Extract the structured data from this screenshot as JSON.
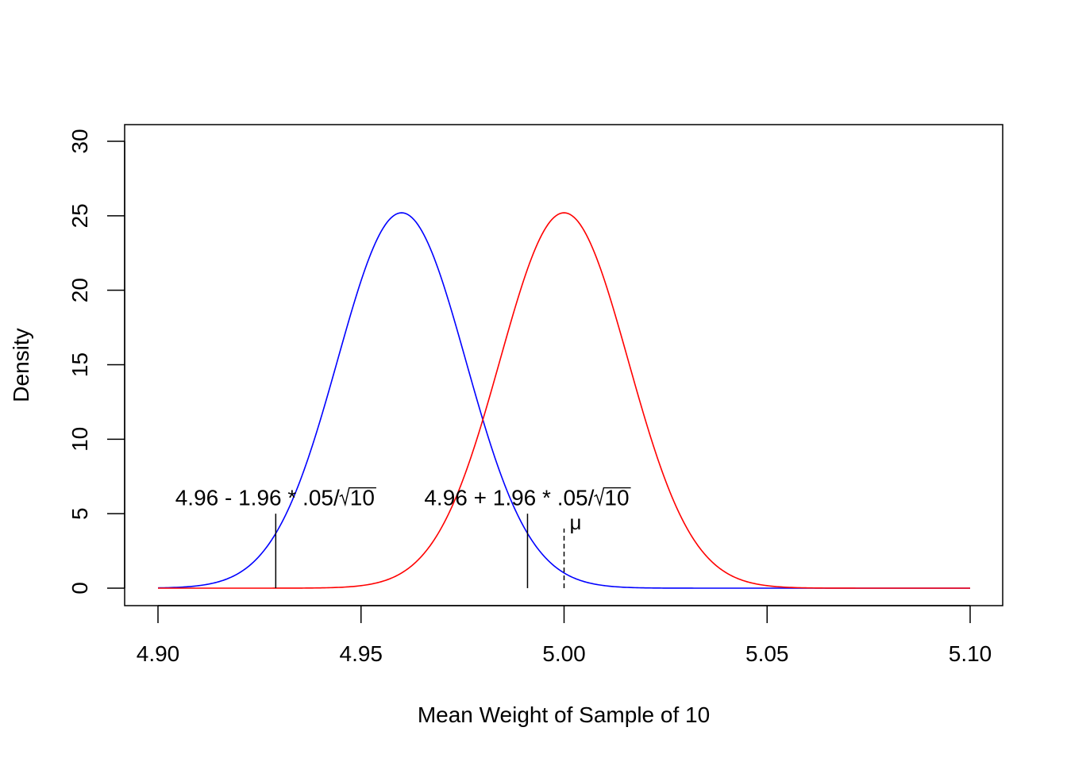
{
  "chart_data": {
    "type": "line",
    "title": "",
    "xlabel": "Mean Weight of Sample of 10",
    "ylabel": "Density",
    "xlim": [
      4.9,
      5.1
    ],
    "ylim": [
      0,
      30
    ],
    "x_ticks": [
      "4.90",
      "4.95",
      "5.00",
      "5.05",
      "5.10"
    ],
    "y_ticks": [
      "0",
      "5",
      "10",
      "15",
      "20",
      "25",
      "30"
    ],
    "grid": false,
    "series": [
      {
        "color": "#0000ff",
        "distribution": "normal",
        "mean": 4.96,
        "sd": 0.0158,
        "x_from": 4.9,
        "x_to": 5.1,
        "peak_density": 25.2
      },
      {
        "color": "#ff0000",
        "distribution": "normal",
        "mean": 5.0,
        "sd": 0.0158,
        "x_from": 4.9,
        "x_to": 5.1,
        "peak_density": 25.2
      }
    ],
    "vertical_lines": [
      {
        "x": 4.929,
        "y_top": 5,
        "style": "solid"
      },
      {
        "x": 4.991,
        "y_top": 5,
        "style": "solid"
      },
      {
        "x": 5.0,
        "y_top": 4,
        "style": "dashed"
      }
    ],
    "annotations": [
      {
        "text": "4.96 - 1.96 * .05/",
        "radicand": "10",
        "x": 4.929,
        "y": 5.3
      },
      {
        "text": "4.96 + 1.96 * .05/",
        "radicand": "10",
        "x": 4.991,
        "y": 5.3
      },
      {
        "text": "μ",
        "x": 5.0,
        "y": 4
      }
    ]
  }
}
